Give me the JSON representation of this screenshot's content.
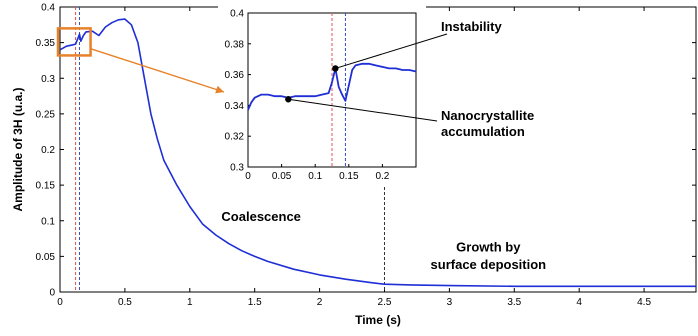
{
  "chart_data": [
    {
      "type": "line",
      "title": "",
      "xlabel": "Time (s)",
      "ylabel": "Amplitude of 3H (u.a.)",
      "xlim": [
        0,
        4.9
      ],
      "ylim": [
        0,
        0.4
      ],
      "xticks": [
        "0",
        "0.5",
        "1",
        "1.5",
        "2",
        "2.5",
        "3",
        "3.5",
        "4",
        "4.5"
      ],
      "yticks": [
        "0",
        "0.05",
        "0.1",
        "0.15",
        "0.2",
        "0.25",
        "0.3",
        "0.35",
        "0.4"
      ],
      "grid": false,
      "line_color": "#1f2fd6",
      "series": [
        {
          "x": [
            0,
            0.05,
            0.1,
            0.12,
            0.14,
            0.15,
            0.16,
            0.18,
            0.2,
            0.25,
            0.3,
            0.35,
            0.4,
            0.45,
            0.5,
            0.55,
            0.6,
            0.65,
            0.7,
            0.75,
            0.8,
            0.9,
            1.0,
            1.1,
            1.2,
            1.3,
            1.4,
            1.5,
            1.6,
            1.8,
            2.0,
            2.2,
            2.4,
            2.5,
            2.7,
            3.0,
            3.5,
            4.0,
            4.5,
            4.9
          ],
          "y": [
            0.34,
            0.345,
            0.347,
            0.348,
            0.357,
            0.362,
            0.352,
            0.36,
            0.365,
            0.366,
            0.36,
            0.372,
            0.378,
            0.382,
            0.383,
            0.375,
            0.35,
            0.3,
            0.25,
            0.215,
            0.185,
            0.15,
            0.12,
            0.095,
            0.08,
            0.068,
            0.058,
            0.05,
            0.043,
            0.032,
            0.024,
            0.018,
            0.013,
            0.011,
            0.01,
            0.009,
            0.008,
            0.008,
            0.008,
            0.008
          ]
        }
      ],
      "vlines": [
        {
          "x": 0.12,
          "color": "#e05050"
        },
        {
          "x": 0.15,
          "color": "#3050c0"
        },
        {
          "x": 2.5,
          "color": "#333333"
        }
      ],
      "annotations": [
        {
          "text": "Coalescence",
          "x": 1.55,
          "y": 0.1
        },
        {
          "text": "Growth by",
          "x": 3.3,
          "y": 0.057
        },
        {
          "text": "surface deposition",
          "x": 3.3,
          "y": 0.032
        }
      ],
      "highlight_box": {
        "x": [
          0,
          0.22
        ],
        "y": [
          0.332,
          0.37
        ],
        "color": "#e8822a"
      }
    },
    {
      "type": "line",
      "title": "",
      "inset": true,
      "xlim": [
        0,
        0.25
      ],
      "ylim": [
        0.3,
        0.4
      ],
      "xticks": [
        "0",
        "0.05",
        "0.1",
        "0.15",
        "0.2"
      ],
      "yticks": [
        "0.3",
        "0.32",
        "0.34",
        "0.36",
        "0.38",
        "0.4"
      ],
      "line_color": "#1f2fd6",
      "series": [
        {
          "x": [
            0,
            0.005,
            0.01,
            0.02,
            0.03,
            0.04,
            0.05,
            0.06,
            0.07,
            0.08,
            0.09,
            0.1,
            0.11,
            0.12,
            0.125,
            0.13,
            0.135,
            0.14,
            0.145,
            0.15,
            0.155,
            0.16,
            0.17,
            0.18,
            0.19,
            0.2,
            0.21,
            0.22,
            0.23,
            0.24,
            0.25
          ],
          "y": [
            0.337,
            0.342,
            0.345,
            0.347,
            0.347,
            0.346,
            0.346,
            0.345,
            0.346,
            0.346,
            0.346,
            0.346,
            0.347,
            0.348,
            0.355,
            0.364,
            0.352,
            0.347,
            0.343,
            0.353,
            0.363,
            0.366,
            0.367,
            0.367,
            0.366,
            0.365,
            0.364,
            0.364,
            0.363,
            0.363,
            0.362
          ]
        }
      ],
      "vlines": [
        {
          "x": 0.125,
          "color": "#e05050"
        },
        {
          "x": 0.145,
          "color": "#3050c0"
        }
      ],
      "markers": [
        {
          "x": 0.06,
          "y": 0.344,
          "label": "Nanocrystallite accumulation",
          "lines": [
            "Nanocrystallite",
            "accumulation"
          ]
        },
        {
          "x": 0.13,
          "y": 0.364,
          "label": "Instability",
          "lines": [
            "Instability"
          ]
        }
      ]
    }
  ]
}
